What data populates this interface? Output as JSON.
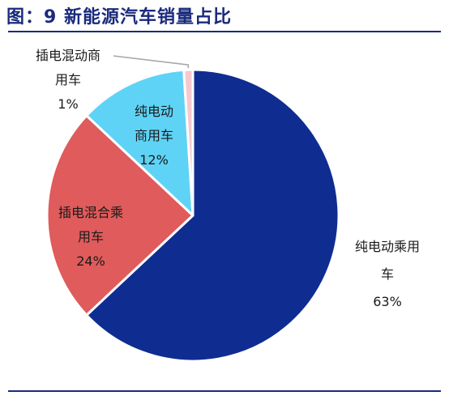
{
  "figure": {
    "title": "图：9 新能源汽车销量占比"
  },
  "colors": {
    "title": "#1a2a7c",
    "rule": "#1a2a7c"
  },
  "chart_data": {
    "type": "pie",
    "title": "",
    "slices": [
      {
        "label": "纯电动乘用车",
        "label_lines": [
          "纯电动乘用",
          "车"
        ],
        "pct_text": "63%",
        "value": 63,
        "color": "#0f2d91",
        "label_inside": false,
        "text_color": "#1a1a1a"
      },
      {
        "label": "插电混合乘用车",
        "label_lines": [
          "插电混合乘",
          "用车"
        ],
        "pct_text": "24%",
        "value": 24,
        "color": "#e05b5b",
        "label_inside": true,
        "text_color": "#1a1a1a"
      },
      {
        "label": "纯电动商用车",
        "label_lines": [
          "纯电动",
          "商用车"
        ],
        "pct_text": "12%",
        "value": 12,
        "color": "#5fd3f5",
        "label_inside": true,
        "text_color": "#1a1a1a"
      },
      {
        "label": "插电混动商用车",
        "label_lines": [
          "插电混动商",
          "用车"
        ],
        "pct_text": "1%",
        "value": 1,
        "color": "#f6c9cf",
        "label_inside": false,
        "text_color": "#1a1a1a"
      }
    ]
  }
}
